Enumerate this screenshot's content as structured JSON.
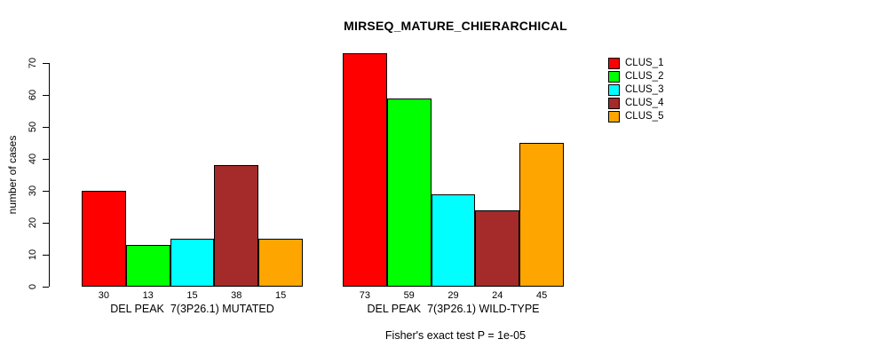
{
  "chart_data": {
    "type": "bar",
    "title": "MIRSEQ_MATURE_CHIERARCHICAL",
    "subtitle": "Fisher's exact test P = 1e-05",
    "xlabel": "",
    "ylabel": "number of cases",
    "ylim": [
      0,
      70
    ],
    "yticks": [
      0,
      10,
      20,
      30,
      40,
      50,
      60,
      70
    ],
    "grid": false,
    "legend_position": "top-right",
    "bar_value_labels": true,
    "bar_border_color": "#000000",
    "background_color": "#FFFFFF",
    "text_color": "#000000",
    "categories": [
      "DEL PEAK  7(3P26.1) MUTATED",
      "DEL PEAK  7(3P26.1) WILD-TYPE"
    ],
    "series": [
      {
        "name": "CLUS_1",
        "color": "#FF0000",
        "values": [
          30,
          73
        ]
      },
      {
        "name": "CLUS_2",
        "color": "#00FF00",
        "values": [
          13,
          59
        ]
      },
      {
        "name": "CLUS_3",
        "color": "#00FFFF",
        "values": [
          15,
          29
        ]
      },
      {
        "name": "CLUS_4",
        "color": "#A52A2A",
        "values": [
          38,
          24
        ]
      },
      {
        "name": "CLUS_5",
        "color": "#FFA500",
        "values": [
          15,
          45
        ]
      }
    ]
  }
}
